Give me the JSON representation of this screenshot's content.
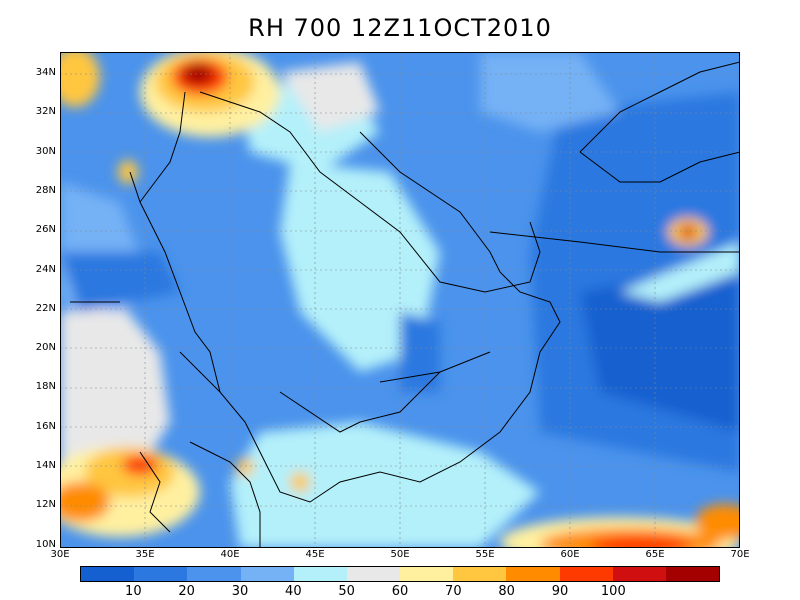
{
  "title": "RH 700 12Z11OCT2010",
  "lat_labels": [
    "34N",
    "32N",
    "30N",
    "28N",
    "26N",
    "24N",
    "22N",
    "20N",
    "18N",
    "16N",
    "14N",
    "12N",
    "10N"
  ],
  "lon_labels": [
    "30E",
    "35E",
    "40E",
    "45E",
    "50E",
    "55E",
    "60E",
    "65E",
    "70E"
  ],
  "colorbar": {
    "colors": [
      "#1560d0",
      "#2a78e0",
      "#4b93ec",
      "#75b1f5",
      "#b4f0fa",
      "#e8e8e8",
      "#fff0a0",
      "#ffc640",
      "#ff8c00",
      "#ff3a00",
      "#d01010",
      "#a50000"
    ],
    "labels": [
      "10",
      "20",
      "30",
      "40",
      "50",
      "60",
      "70",
      "80",
      "90",
      "100"
    ]
  },
  "palette": {
    "deep_blue": "#1560d0",
    "blue": "#2a78e0",
    "mid_blue": "#4b93ec",
    "light_blue": "#75b1f5",
    "cyan": "#b4f0fa",
    "gray": "#e8e8e8",
    "yellow": "#fff0a0",
    "orange": "#ffc640",
    "dark_orange": "#ff8c00",
    "red": "#ff3a00",
    "dark_red": "#a50000"
  }
}
